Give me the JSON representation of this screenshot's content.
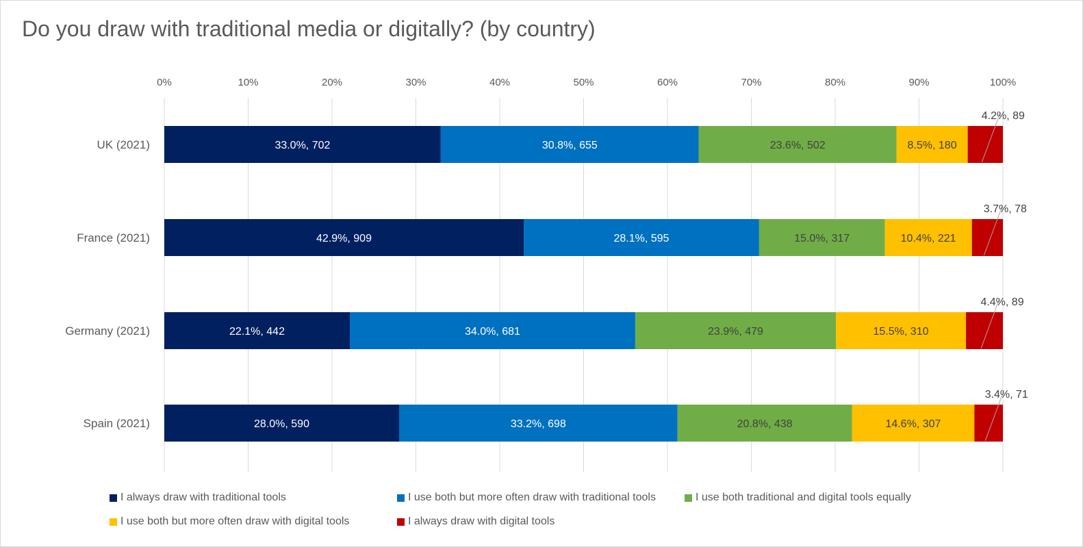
{
  "chart_data": {
    "type": "bar",
    "orientation": "horizontal",
    "stacked": "percent",
    "title": "Do you draw with traditional media or digitally? (by country)",
    "xlabel": "",
    "ylabel": "",
    "xlim": [
      0,
      100
    ],
    "x_ticks": [
      "0%",
      "10%",
      "20%",
      "30%",
      "40%",
      "50%",
      "60%",
      "70%",
      "80%",
      "90%",
      "100%"
    ],
    "grid": "vertical",
    "legend_position": "bottom",
    "categories": [
      "UK (2021)",
      "France (2021)",
      "Germany (2021)",
      "Spain (2021)"
    ],
    "series": [
      {
        "name": "I always draw with traditional tools",
        "color": "#002060",
        "label_color": "#ffffff",
        "values": [
          33.0,
          42.9,
          22.1,
          28.0
        ],
        "counts": [
          702,
          909,
          442,
          590
        ],
        "labels": [
          "33.0%, 702",
          "42.9%, 909",
          "22.1%, 442",
          "28.0%, 590"
        ]
      },
      {
        "name": "I use both but more often draw with traditional tools",
        "color": "#0070c0",
        "label_color": "#ffffff",
        "values": [
          30.8,
          28.1,
          34.0,
          33.2
        ],
        "counts": [
          655,
          595,
          681,
          698
        ],
        "labels": [
          "30.8%, 655",
          "28.1%, 595",
          "34.0%, 681",
          "33.2%, 698"
        ]
      },
      {
        "name": "I use both traditional and digital tools equally",
        "color": "#70ad47",
        "label_color": "#404040",
        "values": [
          23.6,
          15.0,
          23.9,
          20.8
        ],
        "counts": [
          502,
          317,
          479,
          438
        ],
        "labels": [
          "23.6%, 502",
          "15.0%, 317",
          "23.9%, 479",
          "20.8%, 438"
        ]
      },
      {
        "name": "I use both but more often draw with digital tools",
        "color": "#ffc000",
        "label_color": "#404040",
        "values": [
          8.5,
          10.4,
          15.5,
          14.6
        ],
        "counts": [
          180,
          221,
          310,
          307
        ],
        "labels": [
          "8.5%, 180",
          "10.4%, 221",
          "15.5%, 310",
          "14.6%, 307"
        ]
      },
      {
        "name": "I always draw with digital tools",
        "color": "#c00000",
        "label_color": "#404040",
        "label_outside": true,
        "values": [
          4.2,
          3.7,
          4.4,
          3.4
        ],
        "counts": [
          89,
          78,
          89,
          71
        ],
        "labels": [
          "4.2%, 89",
          "3.7%, 78",
          "4.4%, 89",
          "3.4%, 71"
        ]
      }
    ]
  }
}
